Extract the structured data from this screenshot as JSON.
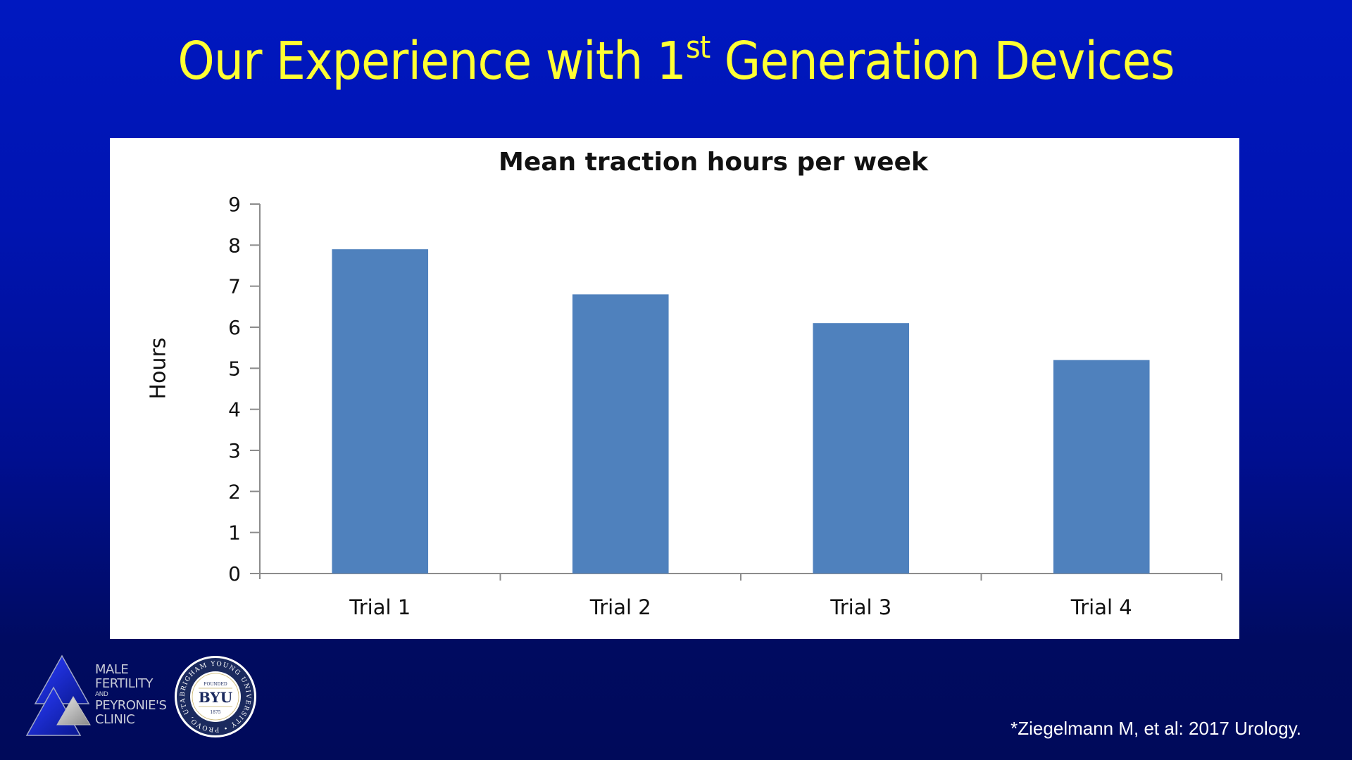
{
  "slide": {
    "title_prefix": "Our Experience with 1",
    "title_superscript": "st",
    "title_suffix": " Generation Devices",
    "title_color": "#ffff33",
    "background_color": "#0016b0"
  },
  "chart_data": {
    "type": "bar",
    "title": "Mean traction hours per week",
    "xlabel": "",
    "ylabel": "Hours",
    "categories": [
      "Trial 1",
      "Trial 2",
      "Trial 3",
      "Trial 4"
    ],
    "values": [
      7.9,
      6.8,
      6.1,
      5.2
    ],
    "ylim": [
      0,
      9
    ],
    "yticks": [
      0,
      1,
      2,
      3,
      4,
      5,
      6,
      7,
      8,
      9
    ],
    "grid": false,
    "legend": null,
    "bar_color": "#4f81bd"
  },
  "footer": {
    "clinic_logo": {
      "line1": "MALE",
      "line2": "FERTILITY",
      "line3": "AND",
      "line4": "PEYRONIE'S",
      "line5": "CLINIC"
    },
    "university_seal": {
      "center_text": "BYU",
      "ring_text": "BRIGHAM YOUNG UNIVERSITY • PROVO, UTAH •",
      "top_small": "FOUNDED",
      "year": "1875"
    },
    "citation": "*Ziegelmann M, et al: 2017 Urology."
  }
}
